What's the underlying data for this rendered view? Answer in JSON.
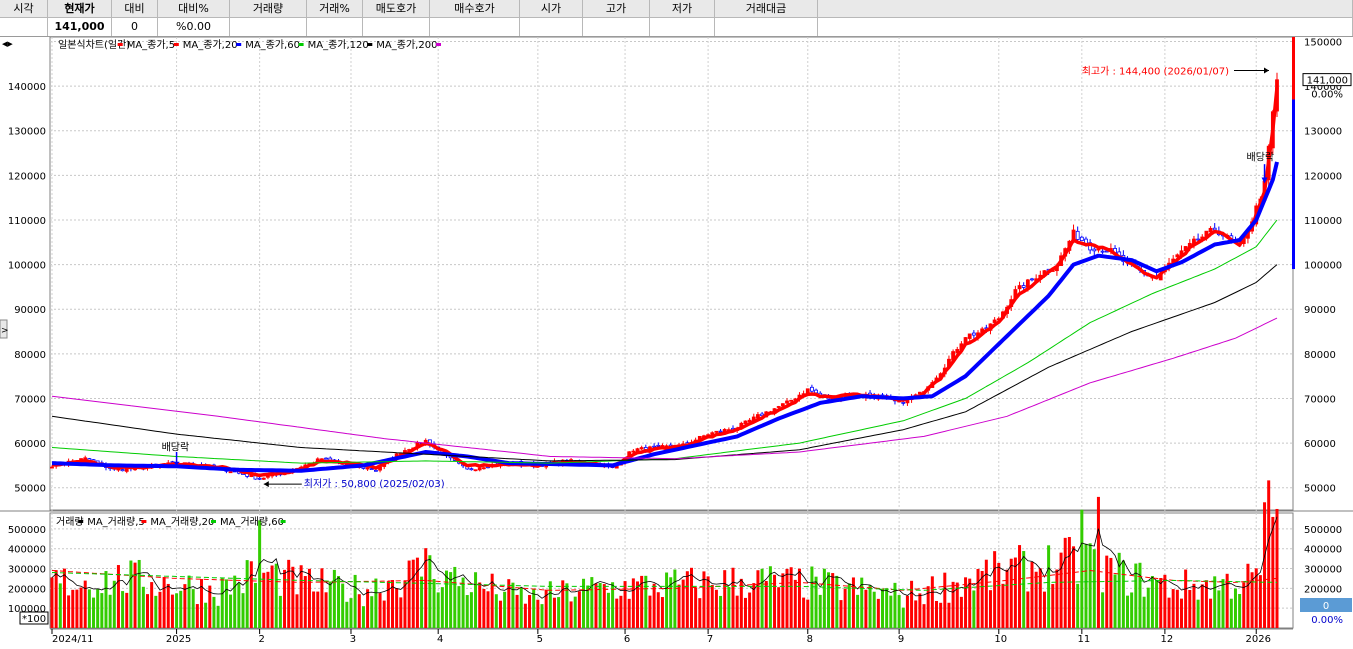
{
  "header": {
    "columns": [
      "시각",
      "현재가",
      "대비",
      "대비%",
      "거래량",
      "거래%",
      "매도호가",
      "매수호가",
      "시가",
      "고가",
      "저가",
      "거래대금"
    ],
    "values": [
      "",
      "141,000",
      "0",
      "%0.00",
      "",
      "",
      "",
      "",
      "",
      "",
      "",
      ""
    ]
  },
  "price_legend": [
    {
      "label": "일본식차트(일간)",
      "color": "#000000"
    },
    {
      "label": "MA_종가,5",
      "color": "#ff0000"
    },
    {
      "label": "MA_종가,20",
      "color": "#ff0000"
    },
    {
      "label": "MA_종가,60",
      "color": "#0000ff"
    },
    {
      "label": "MA_종가,120",
      "color": "#00cc00"
    },
    {
      "label": "MA_종가,200",
      "color": "#000000"
    }
  ],
  "volume_legend": [
    {
      "label": "거래량",
      "color": "#ff0000"
    },
    {
      "label": "MA_거래량,5",
      "color": "#000000"
    },
    {
      "label": "MA_거래량,20",
      "color": "#ff0000"
    },
    {
      "label": "MA_거래량,60",
      "color": "#00cc00"
    }
  ],
  "annotations": {
    "high": "최고가 : 144,400 (2026/01/07)",
    "low": "최저가 : 50,800 (2025/02/03)",
    "dividend1": "배당락",
    "dividend2": "배당락"
  },
  "right_panel": {
    "current_price": "141,000",
    "change_pct": "0.00%",
    "volume_value": "0",
    "volume_pct": "0.00%"
  },
  "volume_unit": "*100",
  "colors": {
    "up": "#ff0000",
    "down": "#0000ff",
    "ma5": "#ff0000",
    "ma20": "#0000ff",
    "ma120": "#00cc00",
    "ma200": "#000000",
    "ma_extra": "#cc00cc",
    "vol_up": "#ff0000",
    "vol_down": "#33cc00"
  },
  "chart_data": {
    "type": "line",
    "price_axis": {
      "ylim": [
        45000,
        151000
      ],
      "ticks_left": [
        50000,
        60000,
        70000,
        80000,
        90000,
        100000,
        110000,
        120000,
        130000,
        140000
      ],
      "tick_labels_left": [
        "50000",
        "60000",
        "70000",
        "80000",
        "90000",
        "100000",
        "110000",
        "120000",
        "130000",
        "140000"
      ],
      "ticks_right": [
        50000,
        60000,
        70000,
        80000,
        90000,
        100000,
        110000,
        120000,
        130000,
        140000,
        150000
      ],
      "tick_labels_right": [
        "50000",
        "60000",
        "70000",
        "80000",
        "90000",
        "100000",
        "110000",
        "120000",
        "130000",
        "140000",
        "150000"
      ]
    },
    "volume_axis": {
      "ylim": [
        0,
        560000
      ],
      "ticks_left": [
        100000,
        200000,
        300000,
        400000,
        500000
      ],
      "tick_labels_left": [
        "100000",
        "200000",
        "300000",
        "400000",
        "500000"
      ],
      "ticks_right": [
        200000,
        300000,
        400000,
        500000
      ],
      "tick_labels_right": [
        "200000",
        "300000",
        "400000",
        "500000"
      ]
    },
    "x_labels": [
      "2024/11",
      "2025",
      "2",
      "3",
      "4",
      "5",
      "6",
      "7",
      "8",
      "9",
      "10",
      "11",
      "12",
      "2026"
    ],
    "x_label_day_index": [
      0,
      30,
      50,
      72,
      93,
      117,
      138,
      158,
      182,
      204,
      228,
      248,
      268,
      290
    ],
    "n_days": 296,
    "close_anchors": [
      [
        0,
        55000
      ],
      [
        8,
        56500
      ],
      [
        15,
        54000
      ],
      [
        22,
        54500
      ],
      [
        30,
        55500
      ],
      [
        36,
        55000
      ],
      [
        42,
        54000
      ],
      [
        50,
        52000
      ],
      [
        58,
        54000
      ],
      [
        65,
        56500
      ],
      [
        72,
        55000
      ],
      [
        78,
        54000
      ],
      [
        84,
        58000
      ],
      [
        90,
        60500
      ],
      [
        95,
        57000
      ],
      [
        100,
        54000
      ],
      [
        105,
        55000
      ],
      [
        110,
        55500
      ],
      [
        117,
        55000
      ],
      [
        124,
        56000
      ],
      [
        130,
        55500
      ],
      [
        135,
        54500
      ],
      [
        140,
        58500
      ],
      [
        146,
        59000
      ],
      [
        152,
        59500
      ],
      [
        158,
        62000
      ],
      [
        165,
        63500
      ],
      [
        170,
        66000
      ],
      [
        177,
        69000
      ],
      [
        182,
        72000
      ],
      [
        187,
        70000
      ],
      [
        193,
        71000
      ],
      [
        199,
        70500
      ],
      [
        204,
        69000
      ],
      [
        209,
        71000
      ],
      [
        214,
        76000
      ],
      [
        220,
        84000
      ],
      [
        224,
        85000
      ],
      [
        228,
        88000
      ],
      [
        232,
        94000
      ],
      [
        238,
        98000
      ],
      [
        242,
        100000
      ],
      [
        246,
        107000
      ],
      [
        250,
        104000
      ],
      [
        255,
        103000
      ],
      [
        259,
        100000
      ],
      [
        263,
        98000
      ],
      [
        266,
        97000
      ],
      [
        271,
        102000
      ],
      [
        275,
        105000
      ],
      [
        280,
        108000
      ],
      [
        283,
        106000
      ],
      [
        286,
        104000
      ],
      [
        289,
        110000
      ],
      [
        292,
        118000
      ],
      [
        294,
        134000
      ],
      [
        295,
        141000
      ]
    ],
    "series": [
      {
        "name": "MA_종가,5",
        "anchors": [
          [
            0,
            55000
          ],
          [
            8,
            56000
          ],
          [
            15,
            54500
          ],
          [
            22,
            54500
          ],
          [
            30,
            55300
          ],
          [
            36,
            55000
          ],
          [
            42,
            54500
          ],
          [
            50,
            52800
          ],
          [
            58,
            53500
          ],
          [
            65,
            56000
          ],
          [
            72,
            55500
          ],
          [
            78,
            54500
          ],
          [
            84,
            57000
          ],
          [
            90,
            60000
          ],
          [
            95,
            58000
          ],
          [
            100,
            55000
          ],
          [
            105,
            55000
          ],
          [
            110,
            55300
          ],
          [
            117,
            55000
          ],
          [
            124,
            55700
          ],
          [
            130,
            55500
          ],
          [
            135,
            54800
          ],
          [
            140,
            57500
          ],
          [
            146,
            58800
          ],
          [
            152,
            59300
          ],
          [
            158,
            61300
          ],
          [
            165,
            63000
          ],
          [
            170,
            65300
          ],
          [
            177,
            68200
          ],
          [
            182,
            71000
          ],
          [
            187,
            70300
          ],
          [
            193,
            70800
          ],
          [
            199,
            70600
          ],
          [
            204,
            69500
          ],
          [
            209,
            70500
          ],
          [
            214,
            74500
          ],
          [
            220,
            82000
          ],
          [
            224,
            84500
          ],
          [
            228,
            87000
          ],
          [
            232,
            92500
          ],
          [
            238,
            97000
          ],
          [
            242,
            99500
          ],
          [
            246,
            105500
          ],
          [
            250,
            104500
          ],
          [
            255,
            103300
          ],
          [
            259,
            100500
          ],
          [
            263,
            98300
          ],
          [
            266,
            97200
          ],
          [
            271,
            101000
          ],
          [
            275,
            104500
          ],
          [
            280,
            107300
          ],
          [
            283,
            106500
          ],
          [
            286,
            104500
          ],
          [
            289,
            108500
          ],
          [
            292,
            116000
          ],
          [
            294,
            130000
          ],
          [
            295,
            139500
          ]
        ]
      },
      {
        "name": "MA_종가,20",
        "anchors": [
          [
            0,
            55500
          ],
          [
            15,
            55000
          ],
          [
            30,
            54800
          ],
          [
            45,
            54000
          ],
          [
            60,
            53800
          ],
          [
            75,
            55000
          ],
          [
            90,
            58000
          ],
          [
            100,
            57000
          ],
          [
            110,
            55500
          ],
          [
            120,
            55300
          ],
          [
            135,
            55000
          ],
          [
            145,
            57500
          ],
          [
            155,
            59500
          ],
          [
            165,
            61500
          ],
          [
            175,
            65500
          ],
          [
            185,
            69000
          ],
          [
            195,
            70500
          ],
          [
            205,
            70000
          ],
          [
            212,
            70500
          ],
          [
            220,
            75000
          ],
          [
            230,
            84000
          ],
          [
            240,
            93000
          ],
          [
            246,
            100000
          ],
          [
            252,
            102000
          ],
          [
            260,
            101000
          ],
          [
            266,
            98500
          ],
          [
            272,
            100500
          ],
          [
            280,
            104500
          ],
          [
            286,
            105500
          ],
          [
            290,
            110000
          ],
          [
            294,
            119000
          ],
          [
            295,
            123000
          ]
        ]
      },
      {
        "name": "MA_종가,120",
        "anchors": [
          [
            0,
            59000
          ],
          [
            30,
            57000
          ],
          [
            60,
            55500
          ],
          [
            90,
            56000
          ],
          [
            120,
            55500
          ],
          [
            150,
            56500
          ],
          [
            180,
            60000
          ],
          [
            205,
            65000
          ],
          [
            220,
            70000
          ],
          [
            235,
            78000
          ],
          [
            250,
            87000
          ],
          [
            265,
            93500
          ],
          [
            280,
            99000
          ],
          [
            290,
            104000
          ],
          [
            295,
            110000
          ]
        ]
      },
      {
        "name": "MA_종가,200",
        "anchors": [
          [
            0,
            66000
          ],
          [
            30,
            62000
          ],
          [
            60,
            59000
          ],
          [
            90,
            57500
          ],
          [
            120,
            56000
          ],
          [
            150,
            56300
          ],
          [
            180,
            58500
          ],
          [
            205,
            63000
          ],
          [
            220,
            67000
          ],
          [
            240,
            77000
          ],
          [
            260,
            85000
          ],
          [
            280,
            91500
          ],
          [
            290,
            96000
          ],
          [
            295,
            100000
          ]
        ]
      },
      {
        "name": "",
        "anchors": [
          [
            0,
            70500
          ],
          [
            40,
            66000
          ],
          [
            80,
            61000
          ],
          [
            120,
            57000
          ],
          [
            150,
            56500
          ],
          [
            180,
            58000
          ],
          [
            210,
            61500
          ],
          [
            230,
            66000
          ],
          [
            250,
            73500
          ],
          [
            270,
            79000
          ],
          [
            285,
            83500
          ],
          [
            295,
            88000
          ]
        ]
      }
    ],
    "volume_anchors": [
      [
        0,
        240000
      ],
      [
        20,
        260000
      ],
      [
        40,
        200000
      ],
      [
        50,
        300000
      ],
      [
        60,
        240000
      ],
      [
        75,
        200000
      ],
      [
        90,
        310000
      ],
      [
        100,
        240000
      ],
      [
        115,
        160000
      ],
      [
        130,
        210000
      ],
      [
        150,
        230000
      ],
      [
        170,
        250000
      ],
      [
        185,
        230000
      ],
      [
        205,
        170000
      ],
      [
        225,
        280000
      ],
      [
        235,
        320000
      ],
      [
        248,
        350000
      ],
      [
        260,
        270000
      ],
      [
        270,
        220000
      ],
      [
        280,
        230000
      ],
      [
        290,
        260000
      ],
      [
        295,
        440000
      ]
    ],
    "vol_ma20_anchors": [
      [
        0,
        290000
      ],
      [
        30,
        250000
      ],
      [
        60,
        230000
      ],
      [
        90,
        240000
      ],
      [
        120,
        190000
      ],
      [
        150,
        200000
      ],
      [
        180,
        230000
      ],
      [
        205,
        190000
      ],
      [
        230,
        240000
      ],
      [
        250,
        290000
      ],
      [
        270,
        240000
      ],
      [
        285,
        230000
      ],
      [
        295,
        250000
      ]
    ],
    "vol_ma60_anchors": [
      [
        0,
        280000
      ],
      [
        60,
        240000
      ],
      [
        120,
        210000
      ],
      [
        180,
        210000
      ],
      [
        210,
        190000
      ],
      [
        240,
        230000
      ],
      [
        270,
        240000
      ],
      [
        295,
        230000
      ]
    ]
  }
}
